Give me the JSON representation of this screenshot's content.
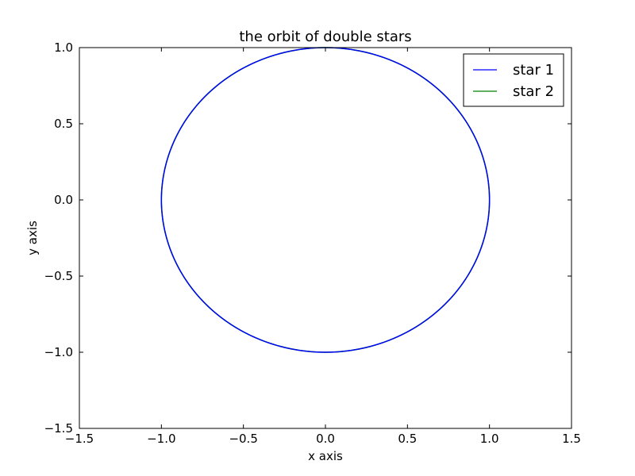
{
  "chart_data": {
    "type": "line",
    "title": "the orbit of double stars",
    "xlabel": "x axis",
    "ylabel": "y axis",
    "xlim": [
      -1.5,
      1.5
    ],
    "ylim": [
      -1.5,
      1.0
    ],
    "xticks": [
      -1.5,
      -1.0,
      -0.5,
      0.0,
      0.5,
      1.0,
      1.5
    ],
    "yticks": [
      -1.5,
      -1.0,
      -0.5,
      0.0,
      0.5,
      1.0
    ],
    "xtick_labels": [
      "−1.5",
      "−1.0",
      "−0.5",
      "0.0",
      "0.5",
      "1.0",
      "1.5"
    ],
    "ytick_labels": [
      "−1.5",
      "−1.0",
      "−0.5",
      "0.0",
      "0.5",
      "1.0"
    ],
    "grid": false,
    "legend_position": "top-right",
    "series": [
      {
        "name": "star 1",
        "color": "#0000ff",
        "shape": "circle",
        "center": [
          0.0,
          0.0
        ],
        "radius": 1.0
      },
      {
        "name": "star 2",
        "color": "#008000",
        "shape": "circle",
        "center": [
          0.0,
          0.0
        ],
        "radius": 1.0
      }
    ]
  }
}
